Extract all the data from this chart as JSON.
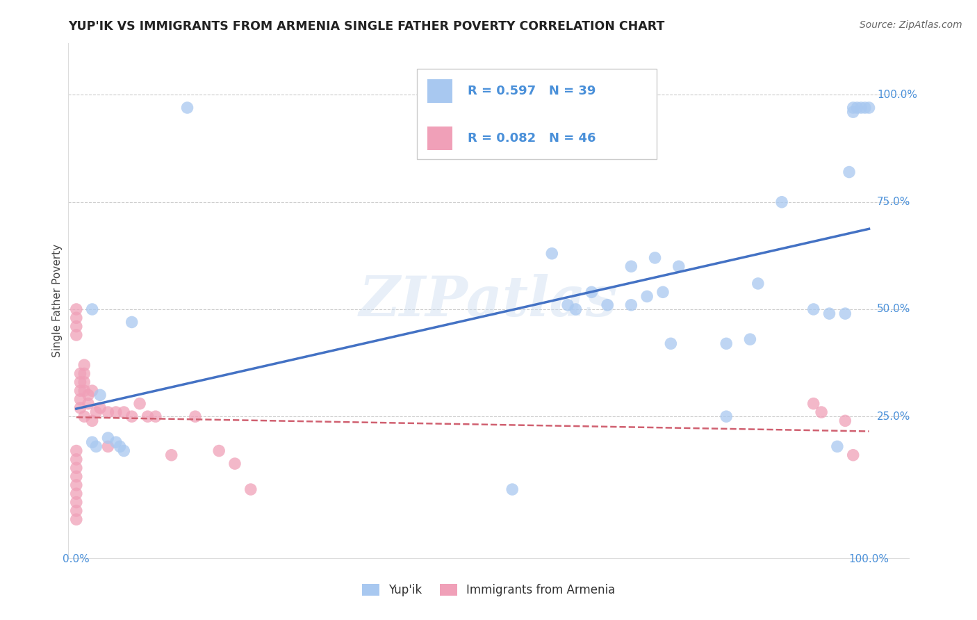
{
  "title": "YUP'IK VS IMMIGRANTS FROM ARMENIA SINGLE FATHER POVERTY CORRELATION CHART",
  "source": "Source: ZipAtlas.com",
  "ylabel": "Single Father Poverty",
  "legend_label1": "Yup'ik",
  "legend_label2": "Immigrants from Armenia",
  "R1": 0.597,
  "N1": 39,
  "R2": 0.082,
  "N2": 46,
  "color_blue": "#a8c8f0",
  "color_pink": "#f0a0b8",
  "color_blue_text": "#4a90d9",
  "color_line_blue": "#4472c4",
  "color_line_pink": "#d06070",
  "watermark": "ZIPatlas",
  "blue_x": [
    0.02,
    0.02,
    0.025,
    0.03,
    0.04,
    0.05,
    0.055,
    0.06,
    0.07,
    0.14,
    0.55,
    0.6,
    0.62,
    0.63,
    0.65,
    0.67,
    0.7,
    0.7,
    0.72,
    0.73,
    0.74,
    0.75,
    0.76,
    0.82,
    0.82,
    0.85,
    0.86,
    0.89,
    0.93,
    0.95,
    0.96,
    0.97,
    0.975,
    0.98,
    0.98,
    0.985,
    0.99,
    0.995,
    1.0
  ],
  "blue_y": [
    0.5,
    0.19,
    0.18,
    0.3,
    0.2,
    0.19,
    0.18,
    0.17,
    0.47,
    0.97,
    0.08,
    0.63,
    0.51,
    0.5,
    0.54,
    0.51,
    0.51,
    0.6,
    0.53,
    0.62,
    0.54,
    0.42,
    0.6,
    0.42,
    0.25,
    0.43,
    0.56,
    0.75,
    0.5,
    0.49,
    0.18,
    0.49,
    0.82,
    0.96,
    0.97,
    0.97,
    0.97,
    0.97,
    0.97
  ],
  "pink_x": [
    0.0,
    0.0,
    0.0,
    0.0,
    0.0,
    0.0,
    0.0,
    0.0,
    0.0,
    0.0,
    0.0,
    0.0,
    0.0,
    0.005,
    0.005,
    0.005,
    0.005,
    0.005,
    0.01,
    0.01,
    0.01,
    0.01,
    0.01,
    0.015,
    0.015,
    0.02,
    0.02,
    0.025,
    0.03,
    0.04,
    0.04,
    0.05,
    0.06,
    0.07,
    0.08,
    0.09,
    0.1,
    0.12,
    0.15,
    0.18,
    0.2,
    0.22,
    0.93,
    0.94,
    0.97,
    0.98
  ],
  "pink_y": [
    0.5,
    0.48,
    0.46,
    0.44,
    0.15,
    0.13,
    0.11,
    0.09,
    0.07,
    0.05,
    0.03,
    0.01,
    0.17,
    0.35,
    0.33,
    0.31,
    0.29,
    0.27,
    0.37,
    0.35,
    0.33,
    0.31,
    0.25,
    0.3,
    0.28,
    0.31,
    0.24,
    0.26,
    0.27,
    0.26,
    0.18,
    0.26,
    0.26,
    0.25,
    0.28,
    0.25,
    0.25,
    0.16,
    0.25,
    0.17,
    0.14,
    0.08,
    0.28,
    0.26,
    0.24,
    0.16
  ]
}
